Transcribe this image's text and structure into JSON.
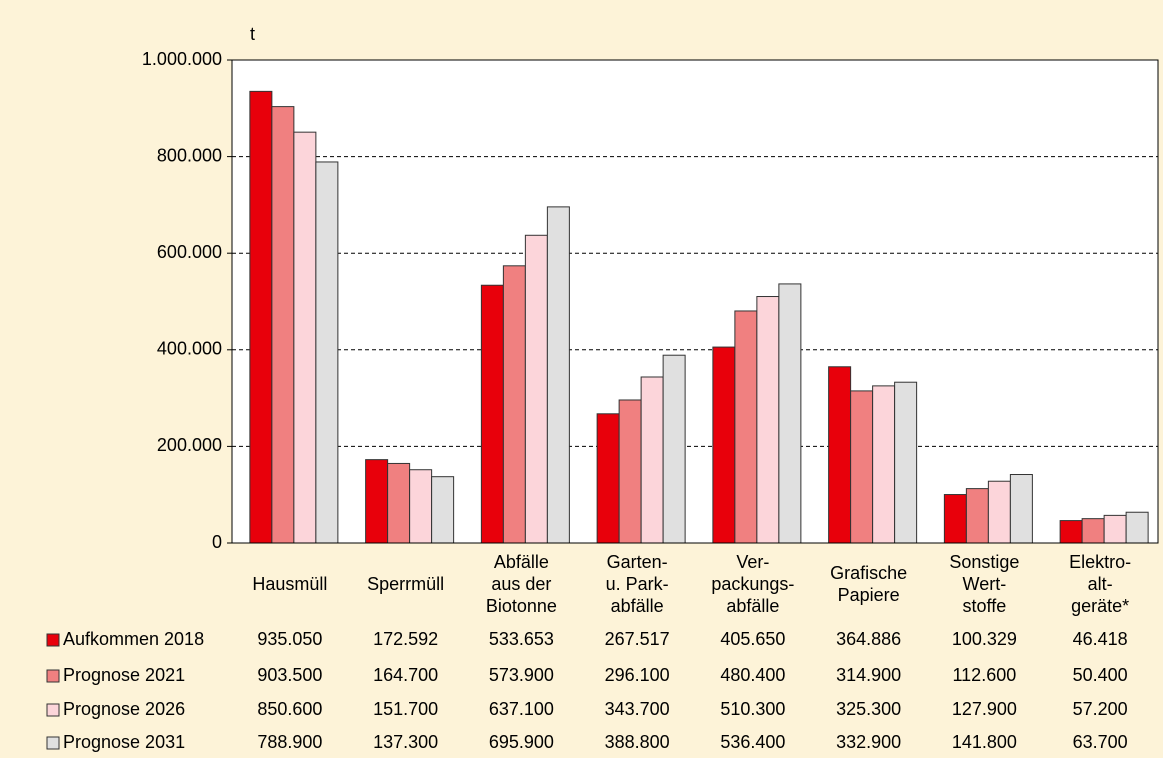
{
  "chart_data": {
    "type": "bar",
    "y_label": "t",
    "categories": [
      [
        "Hausmüll"
      ],
      [
        "Sperrmüll"
      ],
      [
        "Abfälle",
        "aus der",
        "Biotonne"
      ],
      [
        "Garten-",
        "u. Park-",
        "abfälle"
      ],
      [
        "Ver-",
        "packungs-",
        "abfälle"
      ],
      [
        "Grafische",
        "Papiere"
      ],
      [
        "Sonstige",
        "Wert-",
        "stoffe"
      ],
      [
        "Elektro-",
        "alt-",
        "geräte*"
      ]
    ],
    "series": [
      {
        "name": "Aufkommen 2018",
        "color": "#e8000b",
        "values": [
          935050,
          172592,
          533653,
          267517,
          405650,
          364886,
          100329,
          46418
        ],
        "value_labels": [
          "935.050",
          "172.592",
          "533.653",
          "267.517",
          "405.650",
          "364.886",
          "100.329",
          "46.418"
        ]
      },
      {
        "name": "Prognose 2021",
        "color": "#f08080",
        "values": [
          903500,
          164700,
          573900,
          296100,
          480400,
          314900,
          112600,
          50400
        ],
        "value_labels": [
          "903.500",
          "164.700",
          "573.900",
          "296.100",
          "480.400",
          "314.900",
          "112.600",
          "50.400"
        ]
      },
      {
        "name": "Prognose 2026",
        "color": "#fcd5da",
        "values": [
          850600,
          151700,
          637100,
          343700,
          510300,
          325300,
          127900,
          57200
        ],
        "value_labels": [
          "850.600",
          "151.700",
          "637.100",
          "343.700",
          "510.300",
          "325.300",
          "127.900",
          "57.200"
        ]
      },
      {
        "name": "Prognose 2031",
        "color": "#e0e0e0",
        "values": [
          788900,
          137300,
          695900,
          388800,
          536400,
          332900,
          141800,
          63700
        ],
        "value_labels": [
          "788.900",
          "137.300",
          "695.900",
          "388.800",
          "536.400",
          "332.900",
          "141.800",
          "63.700"
        ]
      }
    ],
    "ylim": [
      0,
      1000000
    ],
    "yticks": [
      0,
      {
        "value": 200000,
        "label": "200.000"
      },
      {
        "value": 400000,
        "label": "400.000"
      },
      {
        "value": 600000,
        "label": "600.000"
      },
      {
        "value": 800000,
        "label": "800.000"
      },
      {
        "value": 1000000,
        "label": "1.000.000"
      }
    ],
    "grid": true
  }
}
